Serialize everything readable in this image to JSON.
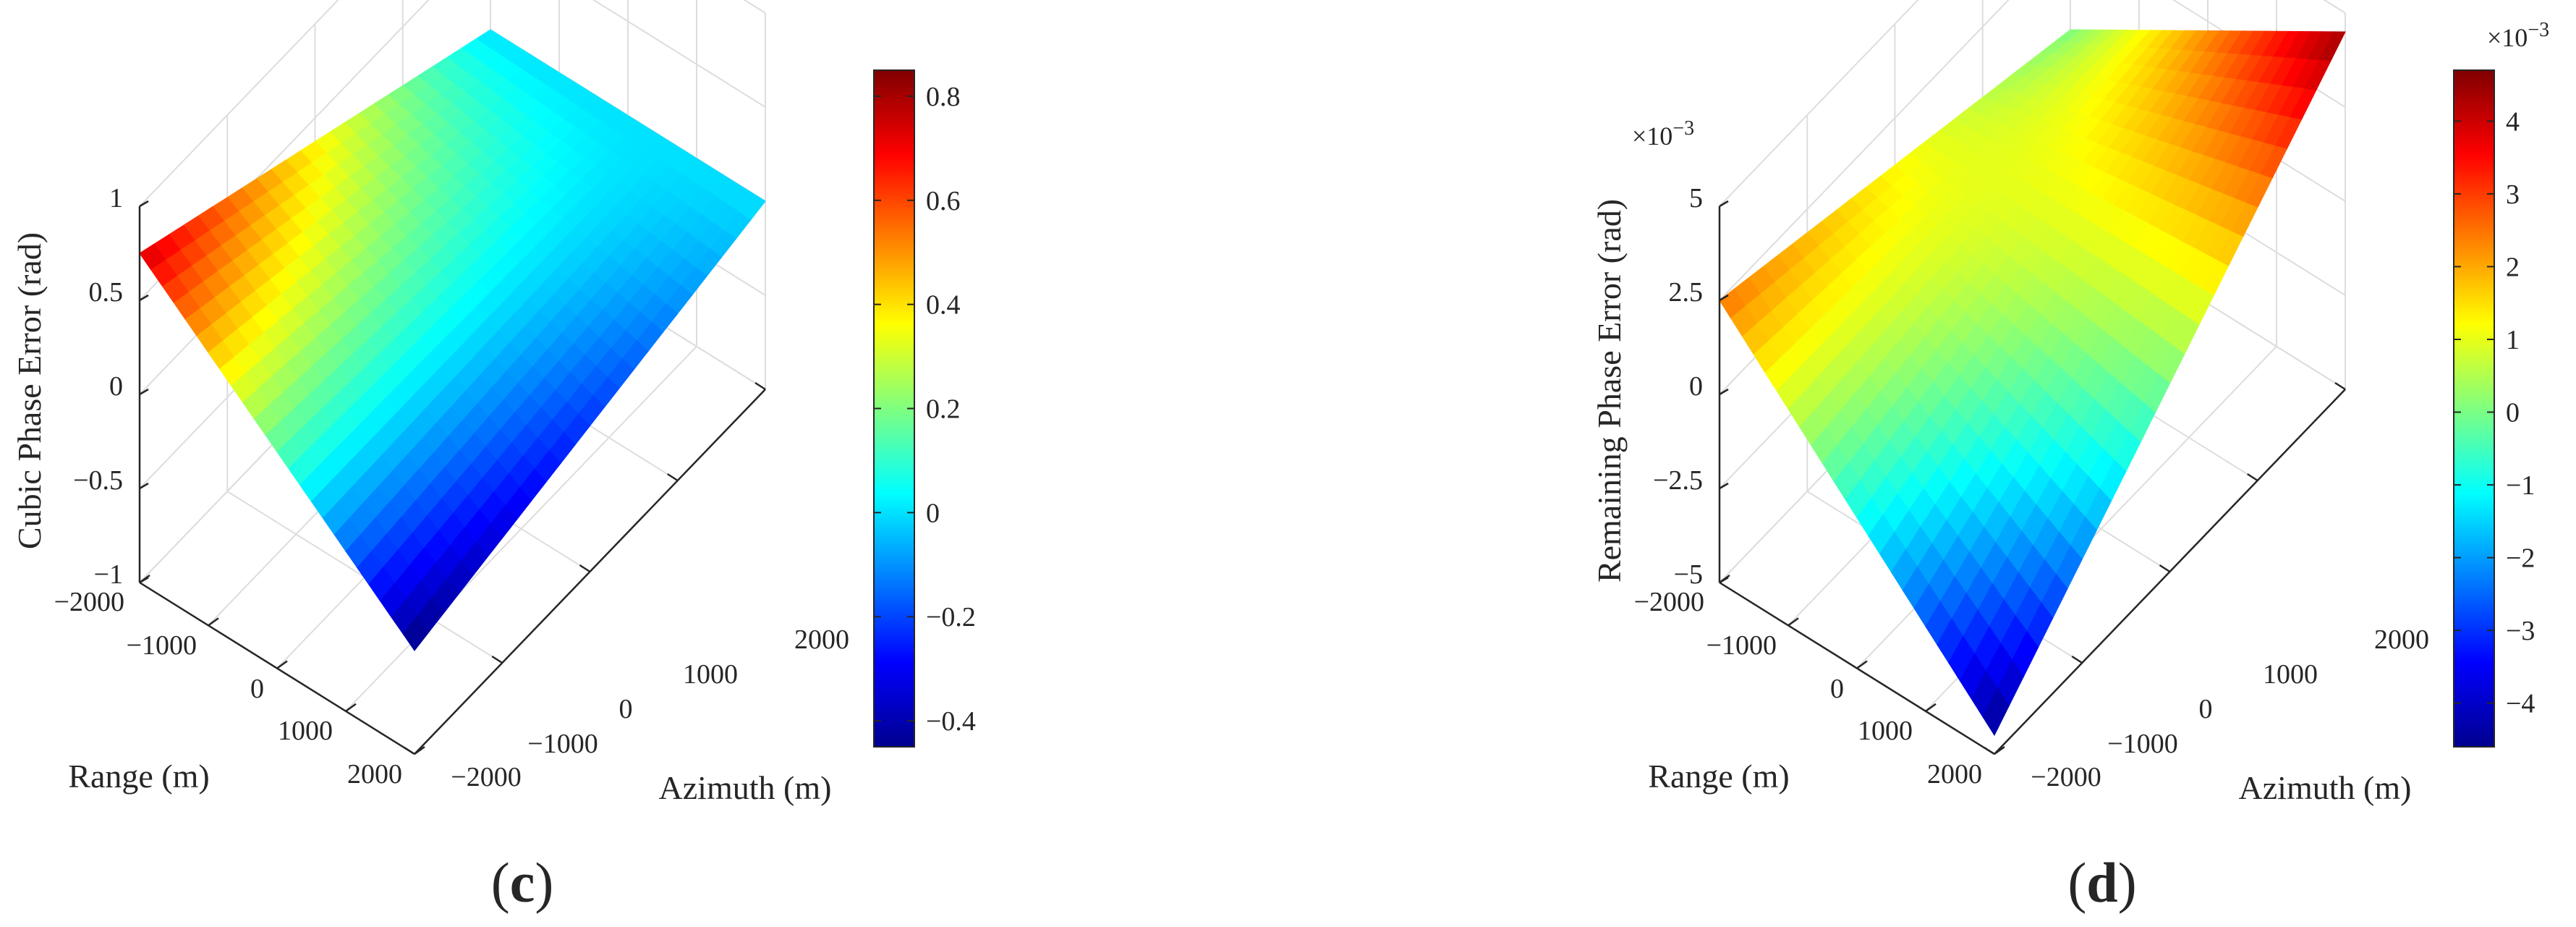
{
  "chart_data": [
    {
      "type": "surface",
      "panel_label": "c",
      "xlabel": "Range (m)",
      "ylabel": "Azimuth (m)",
      "zlabel": "Cubic Phase Error (rad)",
      "xlim": [
        -2000,
        2000
      ],
      "ylim": [
        -2000,
        2000
      ],
      "zlim": [
        -1,
        1
      ],
      "xticks": [
        "−2000",
        "−1000",
        "0",
        "1000",
        "2000"
      ],
      "yticks": [
        "−2000",
        "−1000",
        "0",
        "1000",
        "2000"
      ],
      "zticks": [
        "−1",
        "−0.5",
        "0",
        "0.5",
        "1"
      ],
      "zscale_label": "",
      "surface_corners": {
        "range_-2000_azimuth_-2000": 0.75,
        "range_-2000_azimuth_2000": 0.0,
        "range_2000_azimuth_-2000": -0.45,
        "range_2000_azimuth_2000": 0.0
      },
      "colorbar": {
        "range": [
          -0.45,
          0.85
        ],
        "ticks": [
          "0.8",
          "0.6",
          "0.4",
          "0.2",
          "0",
          "−0.2",
          "−0.4"
        ],
        "tick_values": [
          0.8,
          0.6,
          0.4,
          0.2,
          0,
          -0.2,
          -0.4
        ],
        "scale_label": "",
        "colormap": "jet"
      }
    },
    {
      "type": "surface",
      "panel_label": "d",
      "xlabel": "Range (m)",
      "ylabel": "Azimuth (m)",
      "zlabel": "Remaining Phase Error (rad)",
      "xlim": [
        -2000,
        2000
      ],
      "ylim": [
        -2000,
        2000
      ],
      "zlim": [
        -0.005,
        0.005
      ],
      "xticks": [
        "−2000",
        "−1000",
        "0",
        "1000",
        "2000"
      ],
      "yticks": [
        "−2000",
        "−1000",
        "0",
        "1000",
        "2000"
      ],
      "zticks": [
        "−5",
        "−2.5",
        "0",
        "2.5",
        "5"
      ],
      "zscale_label": "×10",
      "zscale_exp": "−3",
      "surface_corners": {
        "range_-2000_azimuth_-2000": 0.0025,
        "range_-2000_azimuth_2000": 0.0,
        "range_2000_azimuth_-2000": -0.0045,
        "range_2000_azimuth_2000": 0.0045
      },
      "colorbar": {
        "range": [
          -0.0046,
          0.0047
        ],
        "ticks": [
          "4",
          "3",
          "2",
          "1",
          "0",
          "−1",
          "−2",
          "−3",
          "−4"
        ],
        "tick_values": [
          4,
          3,
          2,
          1,
          0,
          -1,
          -2,
          -3,
          -4
        ],
        "scale_label": "×10",
        "scale_exp": "−3",
        "colormap": "jet"
      }
    }
  ]
}
